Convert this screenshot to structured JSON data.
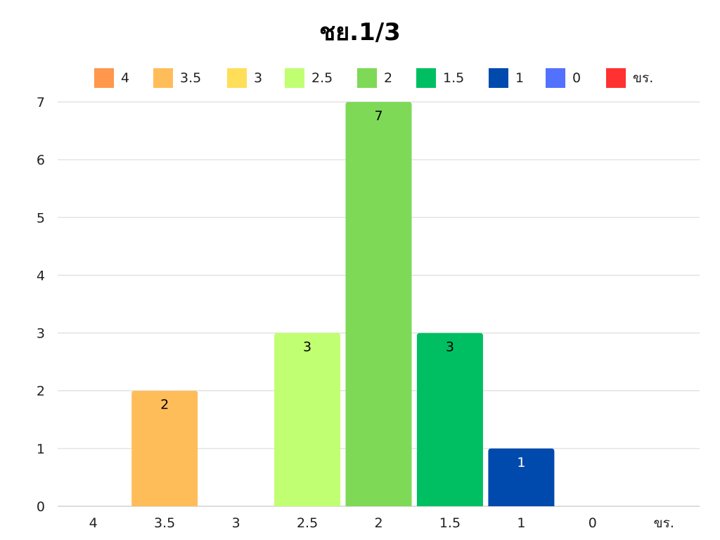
{
  "chart_data": {
    "type": "bar",
    "title": "ชย.1/3",
    "xlabel": "",
    "ylabel": "",
    "categories": [
      "4",
      "3.5",
      "3",
      "2.5",
      "2",
      "1.5",
      "1",
      "0",
      "ขร."
    ],
    "values": [
      0,
      2,
      0,
      3,
      7,
      3,
      1,
      0,
      0
    ],
    "colors": [
      "#FF974C",
      "#FFBD59",
      "#FFDE59",
      "#C1FF72",
      "#7ED957",
      "#00BF63",
      "#004AAD",
      "#5271FF",
      "#FF3131"
    ],
    "data_label_colors": [
      "#000000",
      "#000000",
      "#000000",
      "#000000",
      "#000000",
      "#000000",
      "#FFFFFF",
      "#000000",
      "#000000"
    ],
    "ylim": [
      0,
      7
    ],
    "yticks": [
      "0",
      "1",
      "2",
      "3",
      "4",
      "5",
      "6",
      "7"
    ],
    "grid": true,
    "legend": {
      "position": "top",
      "entries": [
        "4",
        "3.5",
        "3",
        "2.5",
        "2",
        "1.5",
        "1",
        "0",
        "ขร."
      ]
    }
  }
}
